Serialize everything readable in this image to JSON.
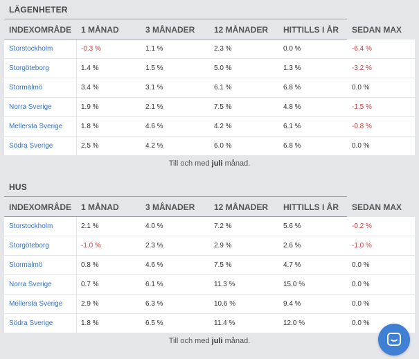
{
  "columns": [
    "INDEXOMRÅDE",
    "1 MÅNAD",
    "3 MÅNADER",
    "12 MÅNADER",
    "HITTILLS I ÅR",
    "SEDAN MAX"
  ],
  "sections": [
    {
      "title": "LÄGENHETER",
      "rows": [
        {
          "area": "Storstockholm",
          "m1": "-0.3 %",
          "m3": "1.1 %",
          "m12": "2.3 %",
          "ytd": "0.0 %",
          "max": "-6.4 %"
        },
        {
          "area": "Storgöteborg",
          "m1": "1.4 %",
          "m3": "1.5 %",
          "m12": "5.0 %",
          "ytd": "1.3 %",
          "max": "-3.2 %"
        },
        {
          "area": "Stormalmö",
          "m1": "3.4 %",
          "m3": "3.1 %",
          "m12": "6.1 %",
          "ytd": "6.8 %",
          "max": "0.0 %"
        },
        {
          "area": "Norra Sverige",
          "m1": "1.9 %",
          "m3": "2.1 %",
          "m12": "7.5 %",
          "ytd": "4.8 %",
          "max": "-1.5 %"
        },
        {
          "area": "Mellersta Sverige",
          "m1": "1.8 %",
          "m3": "4.6 %",
          "m12": "4.2 %",
          "ytd": "6.1 %",
          "max": "-0.8 %"
        },
        {
          "area": "Södra Sverige",
          "m1": "2.5 %",
          "m3": "4.2 %",
          "m12": "6.0 %",
          "ytd": "6.8 %",
          "max": "0.0 %"
        }
      ],
      "note_pre": "Till och med",
      "note_month": "juli",
      "note_post": "månad."
    },
    {
      "title": "HUS",
      "rows": [
        {
          "area": "Storstockholm",
          "m1": "2.1 %",
          "m3": "4.0 %",
          "m12": "7.2 %",
          "ytd": "5.6 %",
          "max": "-0.2 %"
        },
        {
          "area": "Storgöteborg",
          "m1": "-1.0 %",
          "m3": "2.3 %",
          "m12": "2.9 %",
          "ytd": "2.6 %",
          "max": "-1.0 %"
        },
        {
          "area": "Stormalmö",
          "m1": "0.8 %",
          "m3": "4.6 %",
          "m12": "7.5 %",
          "ytd": "4.7 %",
          "max": "0.0 %"
        },
        {
          "area": "Norra Sverige",
          "m1": "0.7 %",
          "m3": "6.1 %",
          "m12": "11.3 %",
          "ytd": "15.0 %",
          "max": "0.0 %"
        },
        {
          "area": "Mellersta Sverige",
          "m1": "2.9 %",
          "m3": "6.3 %",
          "m12": "10.6 %",
          "ytd": "9.4 %",
          "max": "0.0 %"
        },
        {
          "area": "Södra Sverige",
          "m1": "1.8 %",
          "m3": "6.5 %",
          "m12": "11.4 %",
          "ytd": "12.0 %",
          "max": "0.0 %"
        }
      ],
      "note_pre": "Till och med",
      "note_month": "juli",
      "note_post": "månad."
    }
  ],
  "colors": {
    "link": "#3672c0",
    "negative": "#c4413f",
    "background": "#e4e6ea",
    "chat_button": "#3f7fd4"
  },
  "chat_button": {
    "icon": "chat-bubble-icon"
  }
}
